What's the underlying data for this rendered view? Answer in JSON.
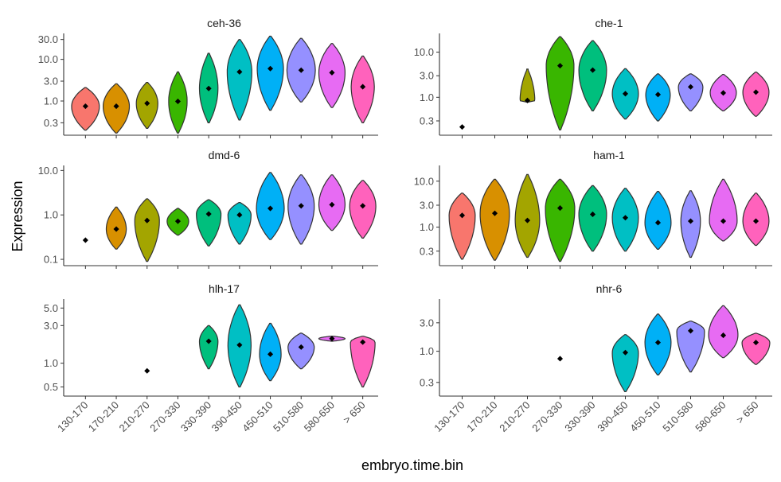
{
  "chart_data": {
    "type": "violin",
    "x_title": "embryo.time.bin",
    "y_title": "Expression",
    "y_scale": "log10",
    "grid": false,
    "legend": "none",
    "categories": [
      "130-170",
      "170-210",
      "210-270",
      "270-330",
      "330-390",
      "390-450",
      "450-510",
      "510-580",
      "580-650",
      "> 650"
    ],
    "colors": [
      "#F8766D",
      "#D89000",
      "#A3A500",
      "#39B600",
      "#00BF7D",
      "#00BFC4",
      "#00B0F6",
      "#9590FF",
      "#E76BF3",
      "#FF62BC"
    ],
    "panels": [
      {
        "title": "ceh-36",
        "y_ticks": [
          "0.3",
          "1.0",
          "3.0",
          "10.0",
          "30.0"
        ],
        "ylim": [
          0.18,
          42
        ],
        "groups": [
          {
            "category": "130-170",
            "min": 0.2,
            "max": 2.1,
            "median": 0.75,
            "width": 0.9
          },
          {
            "category": "170-210",
            "min": 0.17,
            "max": 2.6,
            "median": 0.75,
            "width": 0.85
          },
          {
            "category": "210-270",
            "min": 0.22,
            "max": 2.8,
            "median": 0.88,
            "width": 0.7
          },
          {
            "category": "270-330",
            "min": 0.17,
            "max": 5.0,
            "median": 0.98,
            "width": 0.6
          },
          {
            "category": "330-390",
            "min": 0.3,
            "max": 14,
            "median": 2.0,
            "width": 0.6
          },
          {
            "category": "390-450",
            "min": 0.35,
            "max": 30,
            "median": 5.0,
            "width": 0.8
          },
          {
            "category": "450-510",
            "min": 0.6,
            "max": 36,
            "median": 6.0,
            "width": 0.85
          },
          {
            "category": "510-580",
            "min": 0.95,
            "max": 32,
            "median": 5.5,
            "width": 0.92
          },
          {
            "category": "580-650",
            "min": 0.7,
            "max": 24,
            "median": 4.8,
            "width": 0.85
          },
          {
            "category": "> 650",
            "min": 0.3,
            "max": 12,
            "median": 2.2,
            "width": 0.75
          }
        ]
      },
      {
        "title": "che-1",
        "y_ticks": [
          "0.3",
          "1.0",
          "3.0",
          "10.0"
        ],
        "ylim": [
          0.17,
          26
        ],
        "groups": [
          {
            "category": "130-170",
            "point": 0.22
          },
          {
            "category": "210-270",
            "min": 0.78,
            "max": 4.2,
            "median": 0.85,
            "width": 0.45
          },
          {
            "category": "270-330",
            "min": 0.19,
            "max": 22,
            "median": 5.0,
            "width": 0.85
          },
          {
            "category": "330-390",
            "min": 0.5,
            "max": 18,
            "median": 4.0,
            "width": 0.85
          },
          {
            "category": "390-450",
            "min": 0.33,
            "max": 4.3,
            "median": 1.2,
            "width": 0.8
          },
          {
            "category": "450-510",
            "min": 0.3,
            "max": 3.3,
            "median": 1.15,
            "width": 0.75
          },
          {
            "category": "510-580",
            "min": 0.5,
            "max": 3.3,
            "median": 1.7,
            "width": 0.75
          },
          {
            "category": "580-650",
            "min": 0.5,
            "max": 3.2,
            "median": 1.25,
            "width": 0.8
          },
          {
            "category": "> 650",
            "min": 0.38,
            "max": 3.6,
            "median": 1.3,
            "width": 0.8
          }
        ]
      },
      {
        "title": "dmd-6",
        "y_ticks": [
          "0.1",
          "1.0",
          "10.0"
        ],
        "ylim": [
          0.085,
          13
        ],
        "groups": [
          {
            "category": "130-170",
            "point": 0.27
          },
          {
            "category": "170-210",
            "min": 0.17,
            "max": 1.5,
            "median": 0.48,
            "width": 0.65
          },
          {
            "category": "210-270",
            "min": 0.09,
            "max": 2.3,
            "median": 0.75,
            "width": 0.8
          },
          {
            "category": "270-330",
            "min": 0.35,
            "max": 1.4,
            "median": 0.72,
            "width": 0.7
          },
          {
            "category": "330-390",
            "min": 0.2,
            "max": 2.2,
            "median": 1.05,
            "width": 0.8
          },
          {
            "category": "390-450",
            "min": 0.22,
            "max": 1.9,
            "median": 1.0,
            "width": 0.75
          },
          {
            "category": "450-510",
            "min": 0.28,
            "max": 9.0,
            "median": 1.4,
            "width": 0.9
          },
          {
            "category": "510-580",
            "min": 0.22,
            "max": 8.0,
            "median": 1.6,
            "width": 0.85
          },
          {
            "category": "580-650",
            "min": 0.45,
            "max": 8.0,
            "median": 1.7,
            "width": 0.85
          },
          {
            "category": "> 650",
            "min": 0.3,
            "max": 6.0,
            "median": 1.6,
            "width": 0.85
          }
        ]
      },
      {
        "title": "ham-1",
        "y_ticks": [
          "0.3",
          "1.0",
          "3.0",
          "10.0"
        ],
        "ylim": [
          0.17,
          22
        ],
        "groups": [
          {
            "category": "130-170",
            "min": 0.2,
            "max": 5.5,
            "median": 1.8,
            "width": 0.8
          },
          {
            "category": "170-210",
            "min": 0.19,
            "max": 11,
            "median": 2.0,
            "width": 0.9
          },
          {
            "category": "210-270",
            "min": 0.22,
            "max": 14,
            "median": 1.4,
            "width": 0.75
          },
          {
            "category": "270-330",
            "min": 0.18,
            "max": 11,
            "median": 2.6,
            "width": 0.9
          },
          {
            "category": "330-390",
            "min": 0.3,
            "max": 8.0,
            "median": 1.9,
            "width": 0.85
          },
          {
            "category": "390-450",
            "min": 0.3,
            "max": 7.0,
            "median": 1.6,
            "width": 0.8
          },
          {
            "category": "450-510",
            "min": 0.33,
            "max": 6.0,
            "median": 1.25,
            "width": 0.8
          },
          {
            "category": "510-580",
            "min": 0.22,
            "max": 6.2,
            "median": 1.35,
            "width": 0.6
          },
          {
            "category": "580-650",
            "min": 0.5,
            "max": 11,
            "median": 1.35,
            "width": 0.85
          },
          {
            "category": "> 650",
            "min": 0.4,
            "max": 5.5,
            "median": 1.35,
            "width": 0.8
          }
        ]
      },
      {
        "title": "hlh-17",
        "y_ticks": [
          "0.5",
          "1.0",
          "3.0",
          "5.0"
        ],
        "ylim": [
          0.42,
          6.5
        ],
        "groups": [
          {
            "category": "210-270",
            "point": 0.8
          },
          {
            "category": "330-390",
            "min": 0.85,
            "max": 3.0,
            "median": 1.9,
            "width": 0.6
          },
          {
            "category": "390-450",
            "min": 0.5,
            "max": 5.5,
            "median": 1.7,
            "width": 0.75
          },
          {
            "category": "450-510",
            "min": 0.6,
            "max": 3.2,
            "median": 1.3,
            "width": 0.7
          },
          {
            "category": "510-580",
            "min": 0.85,
            "max": 2.4,
            "median": 1.6,
            "width": 0.85
          },
          {
            "category": "580-650",
            "min": 1.9,
            "max": 2.2,
            "median": 2.05,
            "width": 0.85
          },
          {
            "category": "> 650",
            "min": 0.5,
            "max": 2.2,
            "median": 1.85,
            "width": 0.8
          }
        ]
      },
      {
        "title": "nhr-6",
        "y_ticks": [
          "0.3",
          "1.0",
          "3.0"
        ],
        "ylim": [
          0.2,
          7.5
        ],
        "groups": [
          {
            "category": "270-330",
            "point": 0.75
          },
          {
            "category": "390-450",
            "min": 0.21,
            "max": 1.9,
            "median": 0.95,
            "width": 0.8
          },
          {
            "category": "450-510",
            "min": 0.4,
            "max": 4.2,
            "median": 1.4,
            "width": 0.8
          },
          {
            "category": "510-580",
            "min": 0.45,
            "max": 3.2,
            "median": 2.2,
            "width": 0.85
          },
          {
            "category": "580-650",
            "min": 0.78,
            "max": 5.8,
            "median": 1.85,
            "width": 0.9
          },
          {
            "category": "> 650",
            "min": 0.6,
            "max": 2.0,
            "median": 1.4,
            "width": 0.85
          }
        ]
      }
    ]
  }
}
